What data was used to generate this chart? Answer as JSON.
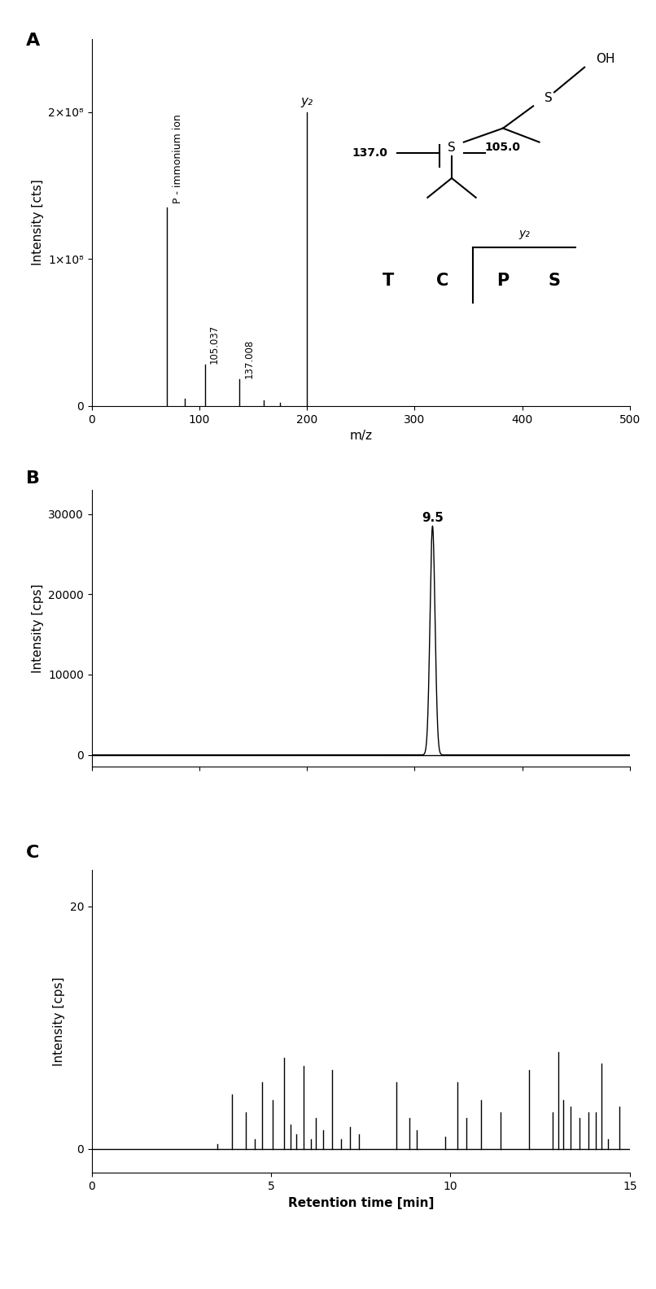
{
  "panel_A": {
    "label": "A",
    "peaks_mz": [
      70,
      86,
      105.037,
      137.008,
      160,
      175,
      200
    ],
    "peaks_int": [
      135000000.0,
      5000000.0,
      28000000.0,
      18000000.0,
      4000000.0,
      2000000.0,
      200000000.0
    ],
    "xlabel": "m/z",
    "ylabel": "Intensity [cts]",
    "xlim": [
      0,
      500
    ],
    "ylim": [
      0,
      250000000.0
    ],
    "yticks": [
      0,
      100000000.0,
      200000000.0
    ],
    "ytick_labels": [
      "0",
      "1×10⁸",
      "2×10⁸"
    ],
    "xticks": [
      0,
      100,
      200,
      300,
      400,
      500
    ],
    "p_immonium_x": 70,
    "y2_x": 200,
    "peak_label_105": "105.037",
    "peak_label_137": "137.008"
  },
  "panel_B": {
    "label": "B",
    "peak_rt": 9.5,
    "peak_int": 28500,
    "ylabel": "Intensity [cps]",
    "ylim": [
      -1500,
      33000
    ],
    "yticks": [
      0,
      10000,
      20000,
      30000
    ],
    "ytick_labels": [
      "0",
      "10000",
      "20000",
      "30000"
    ],
    "xlim": [
      0,
      15
    ],
    "xticks": [
      0,
      3,
      6,
      9,
      12,
      15
    ],
    "peak_label": "9.5",
    "sigma": 0.07
  },
  "panel_C": {
    "label": "C",
    "ylabel": "Intensity [cps]",
    "xlabel": "Retention time [min]",
    "ylim": [
      -2,
      23
    ],
    "yticks": [
      0,
      20
    ],
    "ytick_labels": [
      "0",
      "20"
    ],
    "xlim": [
      0,
      15
    ],
    "xticks": [
      0,
      5,
      10,
      15
    ],
    "noise_peaks_x": [
      3.5,
      3.9,
      4.3,
      4.55,
      4.75,
      5.05,
      5.35,
      5.55,
      5.7,
      5.9,
      6.1,
      6.25,
      6.45,
      6.7,
      6.95,
      7.2,
      7.45,
      8.5,
      8.85,
      9.05,
      9.85,
      10.2,
      10.45,
      10.85,
      11.4,
      12.2,
      12.85,
      13.0,
      13.15,
      13.35,
      13.6,
      13.85,
      14.05,
      14.2,
      14.4,
      14.7
    ],
    "noise_peaks_y": [
      0.4,
      4.5,
      3.0,
      0.8,
      5.5,
      4.0,
      7.5,
      2.0,
      1.2,
      6.8,
      0.8,
      2.5,
      1.5,
      6.5,
      0.8,
      1.8,
      1.2,
      5.5,
      2.5,
      1.5,
      1.0,
      5.5,
      2.5,
      4.0,
      3.0,
      6.5,
      3.0,
      8.0,
      4.0,
      3.5,
      2.5,
      3.0,
      3.0,
      7.0,
      0.8,
      3.5
    ]
  },
  "background_color": "#ffffff",
  "line_color": "#000000"
}
